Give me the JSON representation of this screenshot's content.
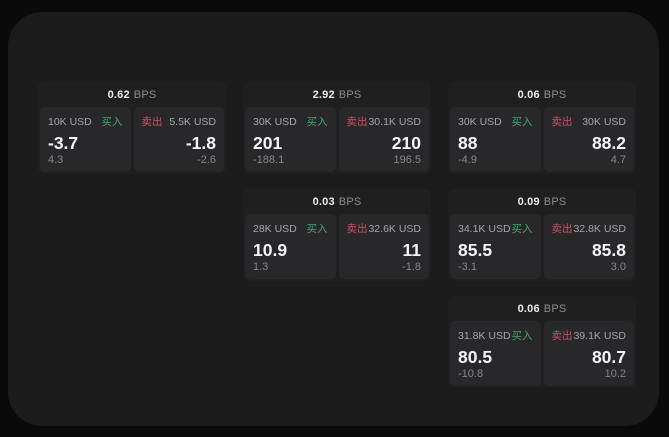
{
  "colors": {
    "buy_green": "#46a56d",
    "sell_red": "#cb5064",
    "outer_background": "#0a0a0a",
    "panel_background": "#1b1b1c",
    "card_background": "#1f1f20",
    "tile_background": "#28282a"
  },
  "bps_unit": "BPS",
  "buy_label": "买入",
  "sell_label": "卖出",
  "cards": [
    {
      "bps": "0.62",
      "buy": {
        "amount": "10K USD",
        "value": "-3.7",
        "sub": "4.3"
      },
      "sell": {
        "amount": "5.5K USD",
        "value": "-1.8",
        "sub": "-2.6"
      }
    },
    {
      "bps": "2.92",
      "buy": {
        "amount": "30K USD",
        "value": "201",
        "sub": "-188.1"
      },
      "sell": {
        "amount": "30.1K USD",
        "value": "210",
        "sub": "196.5"
      }
    },
    {
      "bps": "0.06",
      "buy": {
        "amount": "30K USD",
        "value": "88",
        "sub": "-4.9"
      },
      "sell": {
        "amount": "30K USD",
        "value": "88.2",
        "sub": "4.7"
      }
    },
    {
      "bps": "0.03",
      "buy": {
        "amount": "28K USD",
        "value": "10.9",
        "sub": "1.3"
      },
      "sell": {
        "amount": "32.6K USD",
        "value": "11",
        "sub": "-1.8"
      }
    },
    {
      "bps": "0.09",
      "buy": {
        "amount": "34.1K USD",
        "value": "85.5",
        "sub": "-3.1"
      },
      "sell": {
        "amount": "32.8K USD",
        "value": "85.8",
        "sub": "3.0"
      }
    },
    {
      "bps": "0.06",
      "buy": {
        "amount": "31.8K USD",
        "value": "80.5",
        "sub": "-10.8"
      },
      "sell": {
        "amount": "39.1K USD",
        "value": "80.7",
        "sub": "10.2"
      }
    }
  ]
}
